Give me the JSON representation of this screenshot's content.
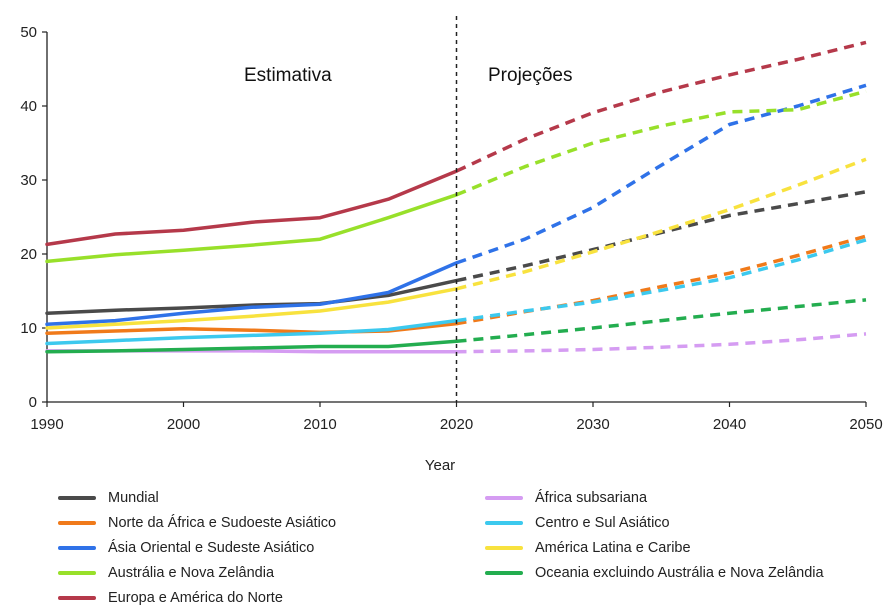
{
  "chart_data": {
    "type": "line",
    "xlabel": "Year",
    "ylabel": "",
    "xlim": [
      1990,
      2050
    ],
    "ylim": [
      0,
      50
    ],
    "x_ticks": [
      "1990",
      "2000",
      "2010",
      "2020",
      "2030",
      "2040",
      "2050"
    ],
    "y_ticks": [
      "0",
      "10",
      "20",
      "30",
      "40",
      "50"
    ],
    "divider_x": 2020,
    "annotations": {
      "left": "Estimativa",
      "right": "Projeções"
    },
    "solid_style_label": "Estimativa",
    "dashed_style_label": "Projeções",
    "x": [
      1990,
      1995,
      2000,
      2005,
      2010,
      2015,
      2020,
      2025,
      2030,
      2035,
      2040,
      2045,
      2050
    ],
    "series": [
      {
        "name": "Mundial",
        "color": "#4a4a4a",
        "values": [
          12.0,
          12.4,
          12.7,
          13.1,
          13.3,
          14.4,
          16.4,
          18.4,
          20.6,
          22.9,
          25.2,
          26.8,
          28.4
        ]
      },
      {
        "name": "Norte da África e Sudoeste Asiático",
        "color": "#f07a1a",
        "values": [
          9.3,
          9.6,
          9.9,
          9.7,
          9.4,
          9.6,
          10.6,
          12.2,
          13.7,
          15.6,
          17.4,
          19.8,
          22.4
        ]
      },
      {
        "name": "Ásia Oriental e Sudeste Asiático",
        "color": "#2f72e8",
        "values": [
          10.5,
          11.0,
          12.0,
          12.8,
          13.2,
          14.8,
          18.8,
          22.0,
          26.3,
          32.0,
          37.5,
          40.0,
          42.8
        ]
      },
      {
        "name": "Austrália e Nova Zelândia",
        "color": "#98e02a",
        "values": [
          19.0,
          19.9,
          20.5,
          21.2,
          22.0,
          24.9,
          28.0,
          31.8,
          35.0,
          37.3,
          39.2,
          39.5,
          42.0
        ]
      },
      {
        "name": "Europa e América do Norte",
        "color": "#b5394a",
        "values": [
          21.3,
          22.7,
          23.2,
          24.3,
          24.9,
          27.4,
          31.2,
          35.5,
          39.1,
          41.9,
          44.2,
          46.3,
          48.6
        ]
      },
      {
        "name": "África subsariana",
        "color": "#d59cf2",
        "values": [
          6.9,
          6.9,
          6.9,
          6.9,
          6.8,
          6.8,
          6.8,
          6.9,
          7.1,
          7.4,
          7.8,
          8.4,
          9.2
        ]
      },
      {
        "name": "Centro e Sul Asiático",
        "color": "#3cc9ee",
        "values": [
          7.9,
          8.3,
          8.7,
          9.0,
          9.3,
          9.8,
          11.0,
          12.3,
          13.5,
          15.1,
          16.8,
          19.2,
          21.9
        ]
      },
      {
        "name": "América Latina e Caribe",
        "color": "#f8e23e",
        "values": [
          10.0,
          10.5,
          11.0,
          11.6,
          12.3,
          13.5,
          15.3,
          17.6,
          20.3,
          23.1,
          26.0,
          29.3,
          32.8
        ]
      },
      {
        "name": "Oceania excluindo Austrália e Nova Zelândia",
        "color": "#23ad4f",
        "values": [
          6.8,
          6.9,
          7.1,
          7.3,
          7.5,
          7.5,
          8.2,
          9.1,
          10.0,
          11.0,
          12.0,
          12.9,
          13.8
        ]
      }
    ]
  }
}
